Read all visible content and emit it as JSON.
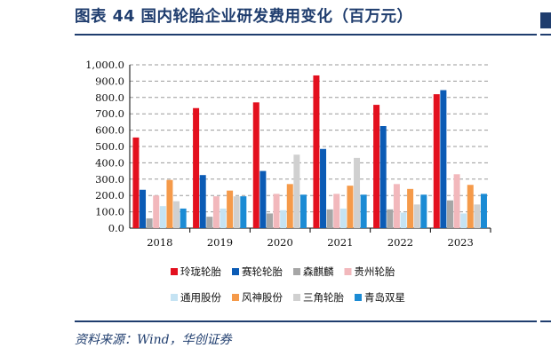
{
  "figure": {
    "title": "图表 44   国内轮胎企业研发费用变化（百万元）",
    "source": "资料来源：Wind，华创证券"
  },
  "chart_data": {
    "type": "bar",
    "title": "",
    "xlabel": "",
    "ylabel": "",
    "ylim": [
      0,
      1000
    ],
    "yticks": [
      "0.0",
      "100.0",
      "200.0",
      "300.0",
      "400.0",
      "500.0",
      "600.0",
      "700.0",
      "800.0",
      "900.0",
      "1,000.0"
    ],
    "grid": "horizontal dashed",
    "legend_position": "bottom",
    "categories": [
      "2018",
      "2019",
      "2020",
      "2021",
      "2022",
      "2023"
    ],
    "series": [
      {
        "name": "玲珑轮胎",
        "color": "#e3101e",
        "values": [
          555,
          735,
          770,
          935,
          755,
          820
        ]
      },
      {
        "name": "赛轮轮胎",
        "color": "#0b5bb5",
        "values": [
          235,
          325,
          350,
          485,
          625,
          845
        ]
      },
      {
        "name": "森麒麟",
        "color": "#a6a6a6",
        "values": [
          60,
          70,
          90,
          115,
          115,
          170
        ]
      },
      {
        "name": "贵州轮胎",
        "color": "#f2b8bc",
        "values": [
          200,
          195,
          210,
          210,
          270,
          330
        ]
      },
      {
        "name": "通用股份",
        "color": "#c5e3f3",
        "values": [
          135,
          120,
          110,
          120,
          95,
          90
        ]
      },
      {
        "name": "风神股份",
        "color": "#f59a4a",
        "values": [
          295,
          230,
          270,
          260,
          240,
          265
        ]
      },
      {
        "name": "三角轮胎",
        "color": "#d0d0d0",
        "values": [
          165,
          195,
          450,
          430,
          145,
          145
        ]
      },
      {
        "name": "青岛双星",
        "color": "#1b8bd4",
        "values": [
          120,
          195,
          205,
          205,
          205,
          210
        ]
      }
    ]
  }
}
